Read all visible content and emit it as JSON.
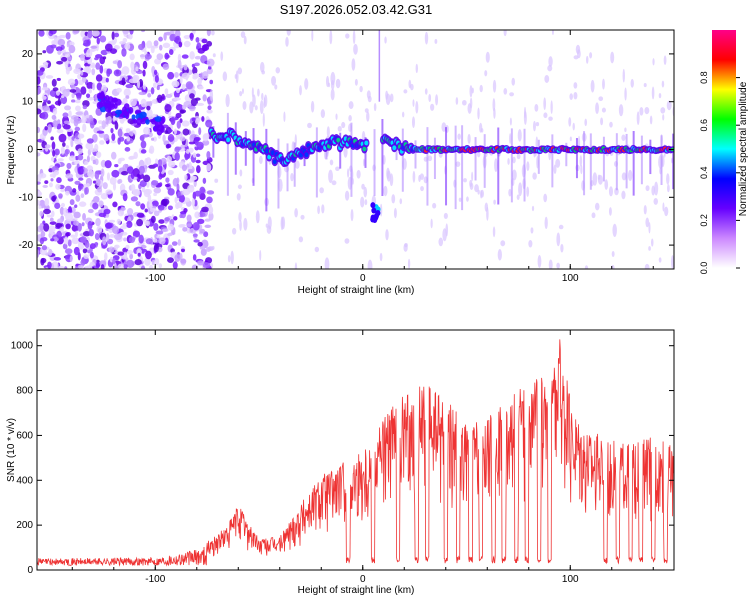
{
  "title": "S197.2026.052.03.42.G31",
  "colors": {
    "series": "#ee3333",
    "frame": "#000000"
  },
  "chart_data": [
    {
      "type": "heatmap",
      "title": "S197.2026.052.03.42.G31",
      "xlabel": "Height of straight line (km)",
      "ylabel": "Frequency (Hz)",
      "xlim": [
        -157,
        150
      ],
      "ylim": [
        -25,
        25
      ],
      "xticks": [
        -100,
        0,
        100
      ],
      "yticks": [
        -20,
        -10,
        0,
        10,
        20
      ],
      "colorbar": {
        "label": "Normalized spectral amplitude",
        "range": [
          0.0,
          1.0
        ],
        "ticks": [
          "0.0",
          "0.2",
          "0.4",
          "0.6",
          "0.8"
        ],
        "colormap": [
          "#ffffff",
          "#cc88ff",
          "#6600ff",
          "#0000ff",
          "#00ffff",
          "#00ff00",
          "#ffff00",
          "#ff0000",
          "#ff0088"
        ]
      },
      "features": {
        "noise_region_km": [
          -157,
          -73
        ],
        "diffuse_band": [
          {
            "x": -125,
            "y": 10
          },
          {
            "x": -105,
            "y": 6
          },
          {
            "x": -98,
            "y": 5
          }
        ],
        "ridge": [
          {
            "x": -72,
            "y": 3
          },
          {
            "x": -60,
            "y": 2.5
          },
          {
            "x": -50,
            "y": 0.5
          },
          {
            "x": -42,
            "y": -2
          },
          {
            "x": -35,
            "y": -1.5
          },
          {
            "x": -25,
            "y": 0
          },
          {
            "x": -15,
            "y": 1.5
          },
          {
            "x": 0,
            "y": 1
          },
          {
            "x": 5,
            "y": 0
          },
          {
            "x": 10,
            "y": 2
          },
          {
            "x": 20,
            "y": 0.5
          },
          {
            "x": 30,
            "y": 0
          },
          {
            "x": 60,
            "y": 0
          },
          {
            "x": 90,
            "y": 0
          },
          {
            "x": 120,
            "y": 0
          },
          {
            "x": 150,
            "y": 0
          }
        ],
        "isolated_blob": {
          "x": 6,
          "y": -13
        }
      }
    },
    {
      "type": "line",
      "xlabel": "Height of straight line (km)",
      "ylabel": "SNR (10 * v/v)",
      "xlim": [
        -157,
        150
      ],
      "ylim": [
        0,
        1070
      ],
      "xticks": [
        -100,
        0,
        100
      ],
      "yticks": [
        0,
        200,
        400,
        600,
        800,
        1000
      ],
      "series": [
        {
          "name": "SNR",
          "envelope": [
            {
              "x": -157,
              "y": 40
            },
            {
              "x": -100,
              "y": 45
            },
            {
              "x": -80,
              "y": 90
            },
            {
              "x": -65,
              "y": 200
            },
            {
              "x": -60,
              "y": 300
            },
            {
              "x": -50,
              "y": 140
            },
            {
              "x": -40,
              "y": 150
            },
            {
              "x": -30,
              "y": 300
            },
            {
              "x": -20,
              "y": 430
            },
            {
              "x": -10,
              "y": 480
            },
            {
              "x": 0,
              "y": 550
            },
            {
              "x": 10,
              "y": 700
            },
            {
              "x": 20,
              "y": 780
            },
            {
              "x": 30,
              "y": 840
            },
            {
              "x": 40,
              "y": 780
            },
            {
              "x": 50,
              "y": 650
            },
            {
              "x": 60,
              "y": 680
            },
            {
              "x": 70,
              "y": 770
            },
            {
              "x": 80,
              "y": 850
            },
            {
              "x": 90,
              "y": 870
            },
            {
              "x": 95,
              "y": 1050
            },
            {
              "x": 100,
              "y": 760
            },
            {
              "x": 110,
              "y": 620
            },
            {
              "x": 120,
              "y": 580
            },
            {
              "x": 130,
              "y": 560
            },
            {
              "x": 140,
              "y": 600
            },
            {
              "x": 150,
              "y": 560
            }
          ],
          "dropouts_km": [
            -7,
            5,
            17,
            26,
            31,
            40,
            46,
            52,
            57,
            63,
            68,
            74,
            79,
            85,
            90,
            117,
            123,
            129,
            134,
            140,
            146
          ]
        }
      ]
    }
  ]
}
